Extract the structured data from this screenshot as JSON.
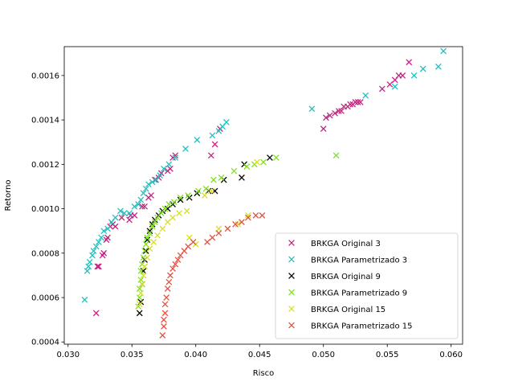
{
  "chart_data": {
    "type": "scatter",
    "xlabel": "Risco",
    "ylabel": "Retorno",
    "xlim": [
      0.0297,
      0.0609
    ],
    "ylim": [
      0.00039,
      0.00173
    ],
    "xticks": [
      "0.030",
      "0.035",
      "0.040",
      "0.045",
      "0.050",
      "0.055",
      "0.060"
    ],
    "yticks": [
      "0.0004",
      "0.0006",
      "0.0008",
      "0.0010",
      "0.0012",
      "0.0014",
      "0.0016"
    ],
    "xtick_values": [
      0.03,
      0.035,
      0.04,
      0.045,
      0.05,
      0.055,
      0.06
    ],
    "ytick_values": [
      0.0004,
      0.0006,
      0.0008,
      0.001,
      0.0012,
      0.0014,
      0.0016
    ],
    "marker": "x",
    "grid": false,
    "legend_position": "lower-right",
    "series": [
      {
        "name": "BRKGA Original 3",
        "color": "#c02680",
        "points": [
          [
            0.0322,
            0.00053
          ],
          [
            0.0323,
            0.00074
          ],
          [
            0.0324,
            0.00074
          ],
          [
            0.0327,
            0.00079
          ],
          [
            0.0328,
            0.0008
          ],
          [
            0.033,
            0.00086
          ],
          [
            0.0331,
            0.00087
          ],
          [
            0.0333,
            0.00092
          ],
          [
            0.0335,
            0.00093
          ],
          [
            0.0337,
            0.00092
          ],
          [
            0.0342,
            0.00096
          ],
          [
            0.0348,
            0.00095
          ],
          [
            0.0349,
            0.00097
          ],
          [
            0.0352,
            0.00097
          ],
          [
            0.0358,
            0.00101
          ],
          [
            0.036,
            0.00101
          ],
          [
            0.0363,
            0.00105
          ],
          [
            0.0365,
            0.00106
          ],
          [
            0.0368,
            0.00113
          ],
          [
            0.0371,
            0.00114
          ],
          [
            0.0373,
            0.00116
          ],
          [
            0.0378,
            0.00117
          ],
          [
            0.038,
            0.00118
          ],
          [
            0.0382,
            0.00123
          ],
          [
            0.0384,
            0.00124
          ],
          [
            0.0412,
            0.00124
          ],
          [
            0.0415,
            0.00129
          ],
          [
            0.0419,
            0.00136
          ],
          [
            0.05,
            0.00136
          ],
          [
            0.0502,
            0.00141
          ],
          [
            0.0505,
            0.00142
          ],
          [
            0.0509,
            0.00143
          ],
          [
            0.0512,
            0.00144
          ],
          [
            0.0514,
            0.00144
          ],
          [
            0.0516,
            0.00146
          ],
          [
            0.0519,
            0.00146
          ],
          [
            0.0521,
            0.00147
          ],
          [
            0.0523,
            0.00147
          ],
          [
            0.0525,
            0.00148
          ],
          [
            0.0527,
            0.00148
          ],
          [
            0.0529,
            0.00148
          ],
          [
            0.0546,
            0.00154
          ],
          [
            0.0552,
            0.00156
          ],
          [
            0.0556,
            0.00158
          ],
          [
            0.0559,
            0.0016
          ],
          [
            0.0562,
            0.0016
          ],
          [
            0.0567,
            0.00166
          ]
        ]
      },
      {
        "name": "BRKGA Parametrizado 3",
        "color": "#20c0c0",
        "points": [
          [
            0.0313,
            0.00059
          ],
          [
            0.0315,
            0.00072
          ],
          [
            0.0316,
            0.00074
          ],
          [
            0.0317,
            0.00076
          ],
          [
            0.0319,
            0.00079
          ],
          [
            0.032,
            0.00081
          ],
          [
            0.0322,
            0.00083
          ],
          [
            0.0324,
            0.00085
          ],
          [
            0.0326,
            0.00087
          ],
          [
            0.0328,
            0.0009
          ],
          [
            0.0331,
            0.00091
          ],
          [
            0.0334,
            0.00094
          ],
          [
            0.0337,
            0.00096
          ],
          [
            0.0341,
            0.00099
          ],
          [
            0.0344,
            0.00098
          ],
          [
            0.0348,
            0.00098
          ],
          [
            0.0352,
            0.00101
          ],
          [
            0.0355,
            0.00102
          ],
          [
            0.0357,
            0.00104
          ],
          [
            0.0359,
            0.00107
          ],
          [
            0.0361,
            0.00109
          ],
          [
            0.0363,
            0.00111
          ],
          [
            0.0366,
            0.00112
          ],
          [
            0.0369,
            0.00113
          ],
          [
            0.0372,
            0.00115
          ],
          [
            0.0375,
            0.00118
          ],
          [
            0.0379,
            0.0012
          ],
          [
            0.0384,
            0.00123
          ],
          [
            0.0392,
            0.00127
          ],
          [
            0.0401,
            0.00131
          ],
          [
            0.0413,
            0.00133
          ],
          [
            0.0418,
            0.00135
          ],
          [
            0.0421,
            0.00137
          ],
          [
            0.0424,
            0.00139
          ],
          [
            0.0491,
            0.00145
          ],
          [
            0.0533,
            0.00151
          ],
          [
            0.0556,
            0.00155
          ],
          [
            0.0571,
            0.0016
          ],
          [
            0.0578,
            0.00163
          ],
          [
            0.059,
            0.00164
          ],
          [
            0.0594,
            0.00171
          ]
        ]
      },
      {
        "name": "BRKGA Original 9",
        "color": "#000000",
        "points": [
          [
            0.0356,
            0.00053
          ],
          [
            0.0357,
            0.00058
          ],
          [
            0.0358,
            0.00066
          ],
          [
            0.0359,
            0.00072
          ],
          [
            0.036,
            0.00077
          ],
          [
            0.0361,
            0.00081
          ],
          [
            0.0362,
            0.00086
          ],
          [
            0.0364,
            0.0009
          ],
          [
            0.0366,
            0.00093
          ],
          [
            0.0368,
            0.00095
          ],
          [
            0.0371,
            0.00097
          ],
          [
            0.0374,
            0.00099
          ],
          [
            0.0378,
            0.001
          ],
          [
            0.0382,
            0.00102
          ],
          [
            0.0388,
            0.00104
          ],
          [
            0.0395,
            0.00105
          ],
          [
            0.0401,
            0.00107
          ],
          [
            0.041,
            0.00108
          ],
          [
            0.0415,
            0.00108
          ],
          [
            0.0422,
            0.00113
          ],
          [
            0.0436,
            0.00114
          ],
          [
            0.0438,
            0.0012
          ],
          [
            0.0458,
            0.00123
          ]
        ]
      },
      {
        "name": "BRKGA Parametrizado 9",
        "color": "#80e020",
        "points": [
          [
            0.0355,
            0.00056
          ],
          [
            0.0356,
            0.0006
          ],
          [
            0.0356,
            0.00064
          ],
          [
            0.0357,
            0.00068
          ],
          [
            0.0357,
            0.00072
          ],
          [
            0.0358,
            0.00075
          ],
          [
            0.0359,
            0.00078
          ],
          [
            0.036,
            0.00081
          ],
          [
            0.0361,
            0.00084
          ],
          [
            0.0362,
            0.00087
          ],
          [
            0.0364,
            0.00089
          ],
          [
            0.0366,
            0.00092
          ],
          [
            0.0368,
            0.00094
          ],
          [
            0.037,
            0.00096
          ],
          [
            0.0373,
            0.00098
          ],
          [
            0.0376,
            0.001
          ],
          [
            0.0379,
            0.00102
          ],
          [
            0.0383,
            0.00103
          ],
          [
            0.0388,
            0.00105
          ],
          [
            0.0394,
            0.00106
          ],
          [
            0.0402,
            0.00108
          ],
          [
            0.0408,
            0.00109
          ],
          [
            0.0414,
            0.00113
          ],
          [
            0.042,
            0.00114
          ],
          [
            0.043,
            0.00117
          ],
          [
            0.044,
            0.00119
          ],
          [
            0.0446,
            0.0012
          ],
          [
            0.0453,
            0.00121
          ],
          [
            0.0463,
            0.00123
          ],
          [
            0.051,
            0.00124
          ]
        ]
      },
      {
        "name": "BRKGA Original 15",
        "color": "#d8e020",
        "points": [
          [
            0.0356,
            0.00057
          ],
          [
            0.0357,
            0.00062
          ],
          [
            0.0358,
            0.00066
          ],
          [
            0.0359,
            0.0007
          ],
          [
            0.036,
            0.00074
          ],
          [
            0.0362,
            0.00078
          ],
          [
            0.0364,
            0.00082
          ],
          [
            0.0367,
            0.00085
          ],
          [
            0.037,
            0.00088
          ],
          [
            0.0374,
            0.00091
          ],
          [
            0.0378,
            0.00094
          ],
          [
            0.0382,
            0.00096
          ],
          [
            0.0387,
            0.00098
          ],
          [
            0.0393,
            0.00099
          ],
          [
            0.0395,
            0.00087
          ],
          [
            0.04,
            0.00084
          ],
          [
            0.0407,
            0.00106
          ],
          [
            0.0412,
            0.00108
          ],
          [
            0.0418,
            0.00091
          ],
          [
            0.0433,
            0.00093
          ],
          [
            0.0441,
            0.00097
          ],
          [
            0.0448,
            0.00121
          ]
        ]
      },
      {
        "name": "BRKGA Parametrizado 15",
        "color": "#e85040",
        "points": [
          [
            0.0374,
            0.00043
          ],
          [
            0.0375,
            0.00047
          ],
          [
            0.0375,
            0.0005
          ],
          [
            0.0376,
            0.00053
          ],
          [
            0.0376,
            0.00057
          ],
          [
            0.0377,
            0.0006
          ],
          [
            0.0378,
            0.00064
          ],
          [
            0.0379,
            0.00067
          ],
          [
            0.038,
            0.0007
          ],
          [
            0.0382,
            0.00073
          ],
          [
            0.0384,
            0.00075
          ],
          [
            0.0386,
            0.00077
          ],
          [
            0.0388,
            0.00079
          ],
          [
            0.0391,
            0.00081
          ],
          [
            0.0394,
            0.00083
          ],
          [
            0.0398,
            0.00085
          ],
          [
            0.0409,
            0.00085
          ],
          [
            0.0413,
            0.00087
          ],
          [
            0.0418,
            0.00089
          ],
          [
            0.0425,
            0.00091
          ],
          [
            0.0431,
            0.00093
          ],
          [
            0.0436,
            0.00094
          ],
          [
            0.0441,
            0.00096
          ],
          [
            0.0447,
            0.00097
          ],
          [
            0.0452,
            0.00097
          ]
        ]
      }
    ]
  }
}
